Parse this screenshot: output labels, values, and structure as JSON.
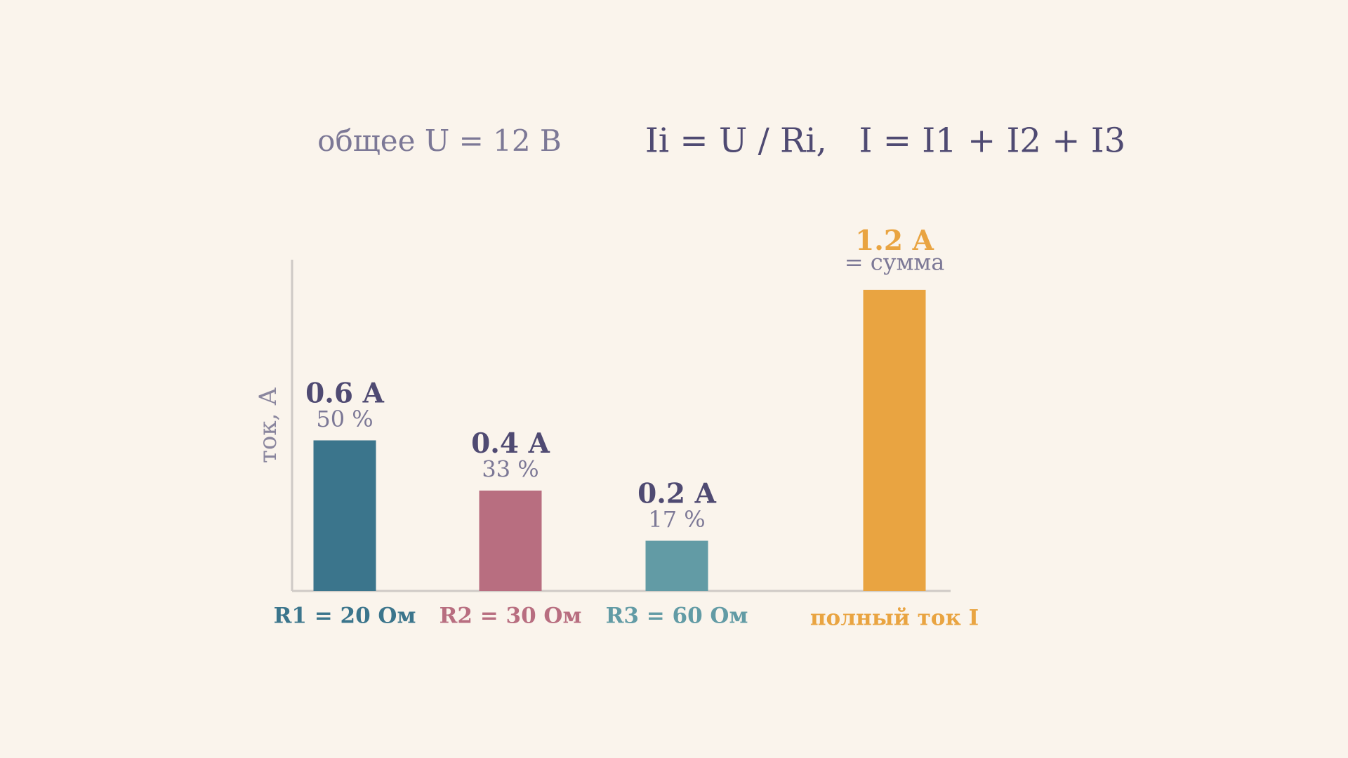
{
  "chart_data": {
    "type": "bar",
    "header_left": "общее U = 12 В",
    "header_right": "Ii = U / Ri,   I = I1 + I2 + I3",
    "y_label": "ток, А",
    "categories": [
      "R1 = 20 Ом",
      "R2 = 30 Ом",
      "R3 = 60 Ом",
      "полный ток I"
    ],
    "values": [
      0.6,
      0.4,
      0.2,
      1.2
    ],
    "value_labels": [
      "0.6 A",
      "0.4 A",
      "0.2 A",
      "1.2 A"
    ],
    "sub_labels": [
      "50 %",
      "33 %",
      "17 %",
      "= сумма"
    ],
    "colors": [
      "#3b758c",
      "#b86e80",
      "#629ba5",
      "#e9a441"
    ],
    "ylim": [
      0,
      1.32
    ]
  }
}
